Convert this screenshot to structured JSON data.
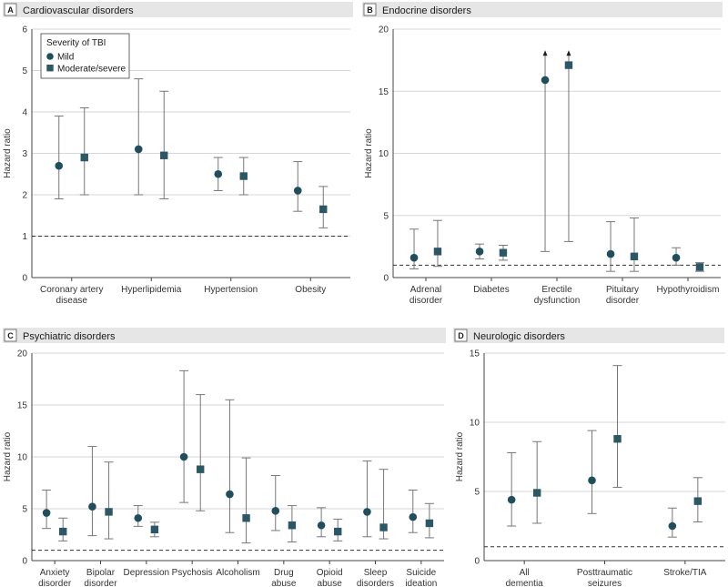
{
  "colors": {
    "mild": "#1f4e5f",
    "moderate_severe": "#2b5866",
    "whisker": "#777777",
    "grid": "#d6d6d6",
    "panel_bg": "#e6e6e6",
    "reference": "#333333"
  },
  "legend": {
    "title": "Severity of TBI",
    "mild": "Mild",
    "moderate_severe": "Moderate/severe"
  },
  "chart_data": [
    {
      "letter": "A",
      "title": "Cardiovascular disorders",
      "type": "scatter",
      "ylabel": "Hazard ratio",
      "ylim": [
        0,
        6
      ],
      "yticks": [
        0,
        1,
        2,
        3,
        4,
        5,
        6
      ],
      "reference_line": 1,
      "categories": [
        [
          "Coronary artery",
          "disease"
        ],
        [
          "Hyperlipidemia"
        ],
        [
          "Hypertension"
        ],
        [
          "Obesity"
        ]
      ],
      "series": [
        {
          "name": "Mild",
          "values": [
            2.7,
            3.1,
            2.5,
            2.1
          ],
          "lower": [
            1.9,
            2.0,
            2.1,
            1.6
          ],
          "upper": [
            3.9,
            4.8,
            2.9,
            2.8
          ]
        },
        {
          "name": "Moderate/severe",
          "values": [
            2.9,
            2.95,
            2.45,
            1.65
          ],
          "lower": [
            2.0,
            1.9,
            2.0,
            1.2
          ],
          "upper": [
            4.1,
            4.5,
            2.9,
            2.2
          ]
        }
      ],
      "legend_position": "top-left"
    },
    {
      "letter": "B",
      "title": "Endocrine disorders",
      "type": "scatter",
      "ylabel": "Hazard ratio",
      "ylim": [
        0,
        20
      ],
      "yticks": [
        0,
        5,
        10,
        15,
        20
      ],
      "reference_line": 1,
      "categories": [
        [
          "Adrenal",
          "disorder"
        ],
        [
          "Diabetes"
        ],
        [
          "Erectile",
          "dysfunction"
        ],
        [
          "Pituitary",
          "disorder"
        ],
        [
          "Hypothyroidism"
        ]
      ],
      "series": [
        {
          "name": "Mild",
          "values": [
            1.6,
            2.1,
            15.9,
            1.9,
            1.6
          ],
          "lower": [
            0.7,
            1.5,
            2.1,
            0.5,
            1.0
          ],
          "upper": [
            3.9,
            2.7,
            18.0,
            4.5,
            2.4
          ]
        },
        {
          "name": "Moderate/severe",
          "values": [
            2.1,
            2.0,
            17.1,
            1.7,
            0.85
          ],
          "lower": [
            0.9,
            1.4,
            2.9,
            0.5,
            0.5
          ],
          "upper": [
            4.6,
            2.6,
            18.0,
            4.8,
            1.2
          ]
        }
      ],
      "arrow_categories": [
        2
      ]
    },
    {
      "letter": "C",
      "title": "Psychiatric disorders",
      "type": "scatter",
      "ylabel": "Hazard ratio",
      "ylim": [
        0,
        20
      ],
      "yticks": [
        0,
        5,
        10,
        15,
        20
      ],
      "reference_line": 1,
      "categories": [
        [
          "Anxiety",
          "disorder"
        ],
        [
          "Bipolar",
          "disorder"
        ],
        [
          "Depression"
        ],
        [
          "Psychosis"
        ],
        [
          "Alcoholism"
        ],
        [
          "Drug",
          "abuse"
        ],
        [
          "Opioid",
          "abuse"
        ],
        [
          "Sleep",
          "disorders"
        ],
        [
          "Suicide",
          "ideation"
        ]
      ],
      "series": [
        {
          "name": "Mild",
          "values": [
            4.6,
            5.2,
            4.1,
            10.0,
            6.4,
            4.8,
            3.4,
            4.7,
            4.2
          ],
          "lower": [
            3.1,
            2.4,
            3.3,
            5.6,
            2.7,
            2.9,
            2.3,
            2.3,
            2.7
          ],
          "upper": [
            6.8,
            11.0,
            5.3,
            18.3,
            15.5,
            8.2,
            5.1,
            9.6,
            6.8
          ]
        },
        {
          "name": "Moderate/severe",
          "values": [
            2.8,
            4.7,
            3.0,
            8.8,
            4.1,
            3.4,
            2.8,
            3.2,
            3.6
          ],
          "lower": [
            1.9,
            2.1,
            2.3,
            4.8,
            1.7,
            1.8,
            1.9,
            2.1,
            2.2
          ],
          "upper": [
            4.1,
            9.5,
            3.7,
            16.0,
            9.9,
            5.3,
            4.0,
            8.8,
            5.5
          ]
        }
      ]
    },
    {
      "letter": "D",
      "title": "Neurologic disorders",
      "type": "scatter",
      "ylabel": "Hazard ratio",
      "ylim": [
        0,
        15
      ],
      "yticks": [
        0,
        5,
        10,
        15
      ],
      "reference_line": 1,
      "categories": [
        [
          "All",
          "dementia"
        ],
        [
          "Posttraumatic",
          "seizures"
        ],
        [
          "Stroke/TIA"
        ]
      ],
      "series": [
        {
          "name": "Mild",
          "values": [
            4.4,
            5.8,
            2.5
          ],
          "lower": [
            2.5,
            3.4,
            1.7
          ],
          "upper": [
            7.8,
            9.4,
            3.8
          ]
        },
        {
          "name": "Moderate/severe",
          "values": [
            4.9,
            8.8,
            4.3
          ],
          "lower": [
            2.7,
            5.3,
            2.8
          ],
          "upper": [
            8.6,
            14.1,
            6.0
          ]
        }
      ]
    }
  ]
}
